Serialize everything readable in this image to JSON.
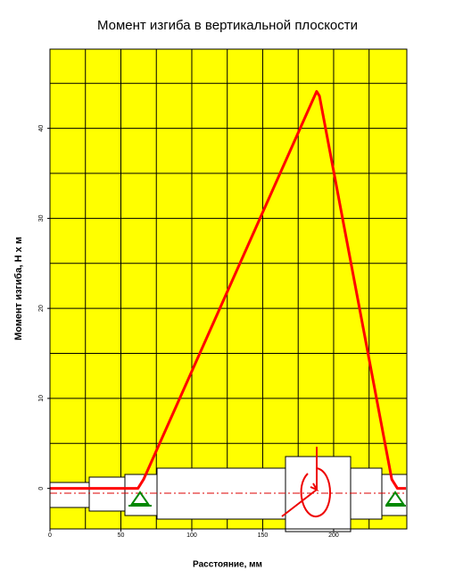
{
  "chart_data": {
    "type": "line",
    "title": "Момент изгиба в вертикальной плоскости",
    "x_label": "Расстояние, мм",
    "y_label": "Момент изгиба, Н х м",
    "x": [
      0,
      62,
      66,
      188,
      190,
      241,
      245,
      251
    ],
    "series": [
      {
        "color": "#ff0000",
        "values": [
          0,
          0,
          1,
          44.1,
          43.6,
          1,
          0,
          0
        ]
      }
    ],
    "xlim": [
      0,
      251.6
    ],
    "ylim": [
      -4.5,
      48.8
    ],
    "xticks": [
      0,
      50,
      100,
      150,
      200
    ],
    "yticks": [
      0,
      10,
      20,
      30,
      40
    ],
    "xgrid": [
      25,
      50,
      75,
      100,
      125,
      150,
      175,
      200,
      225
    ],
    "ygrid": [
      0,
      5,
      10,
      15,
      20,
      25,
      30,
      35,
      40,
      45
    ],
    "background": "#ffff00",
    "grid": true
  }
}
